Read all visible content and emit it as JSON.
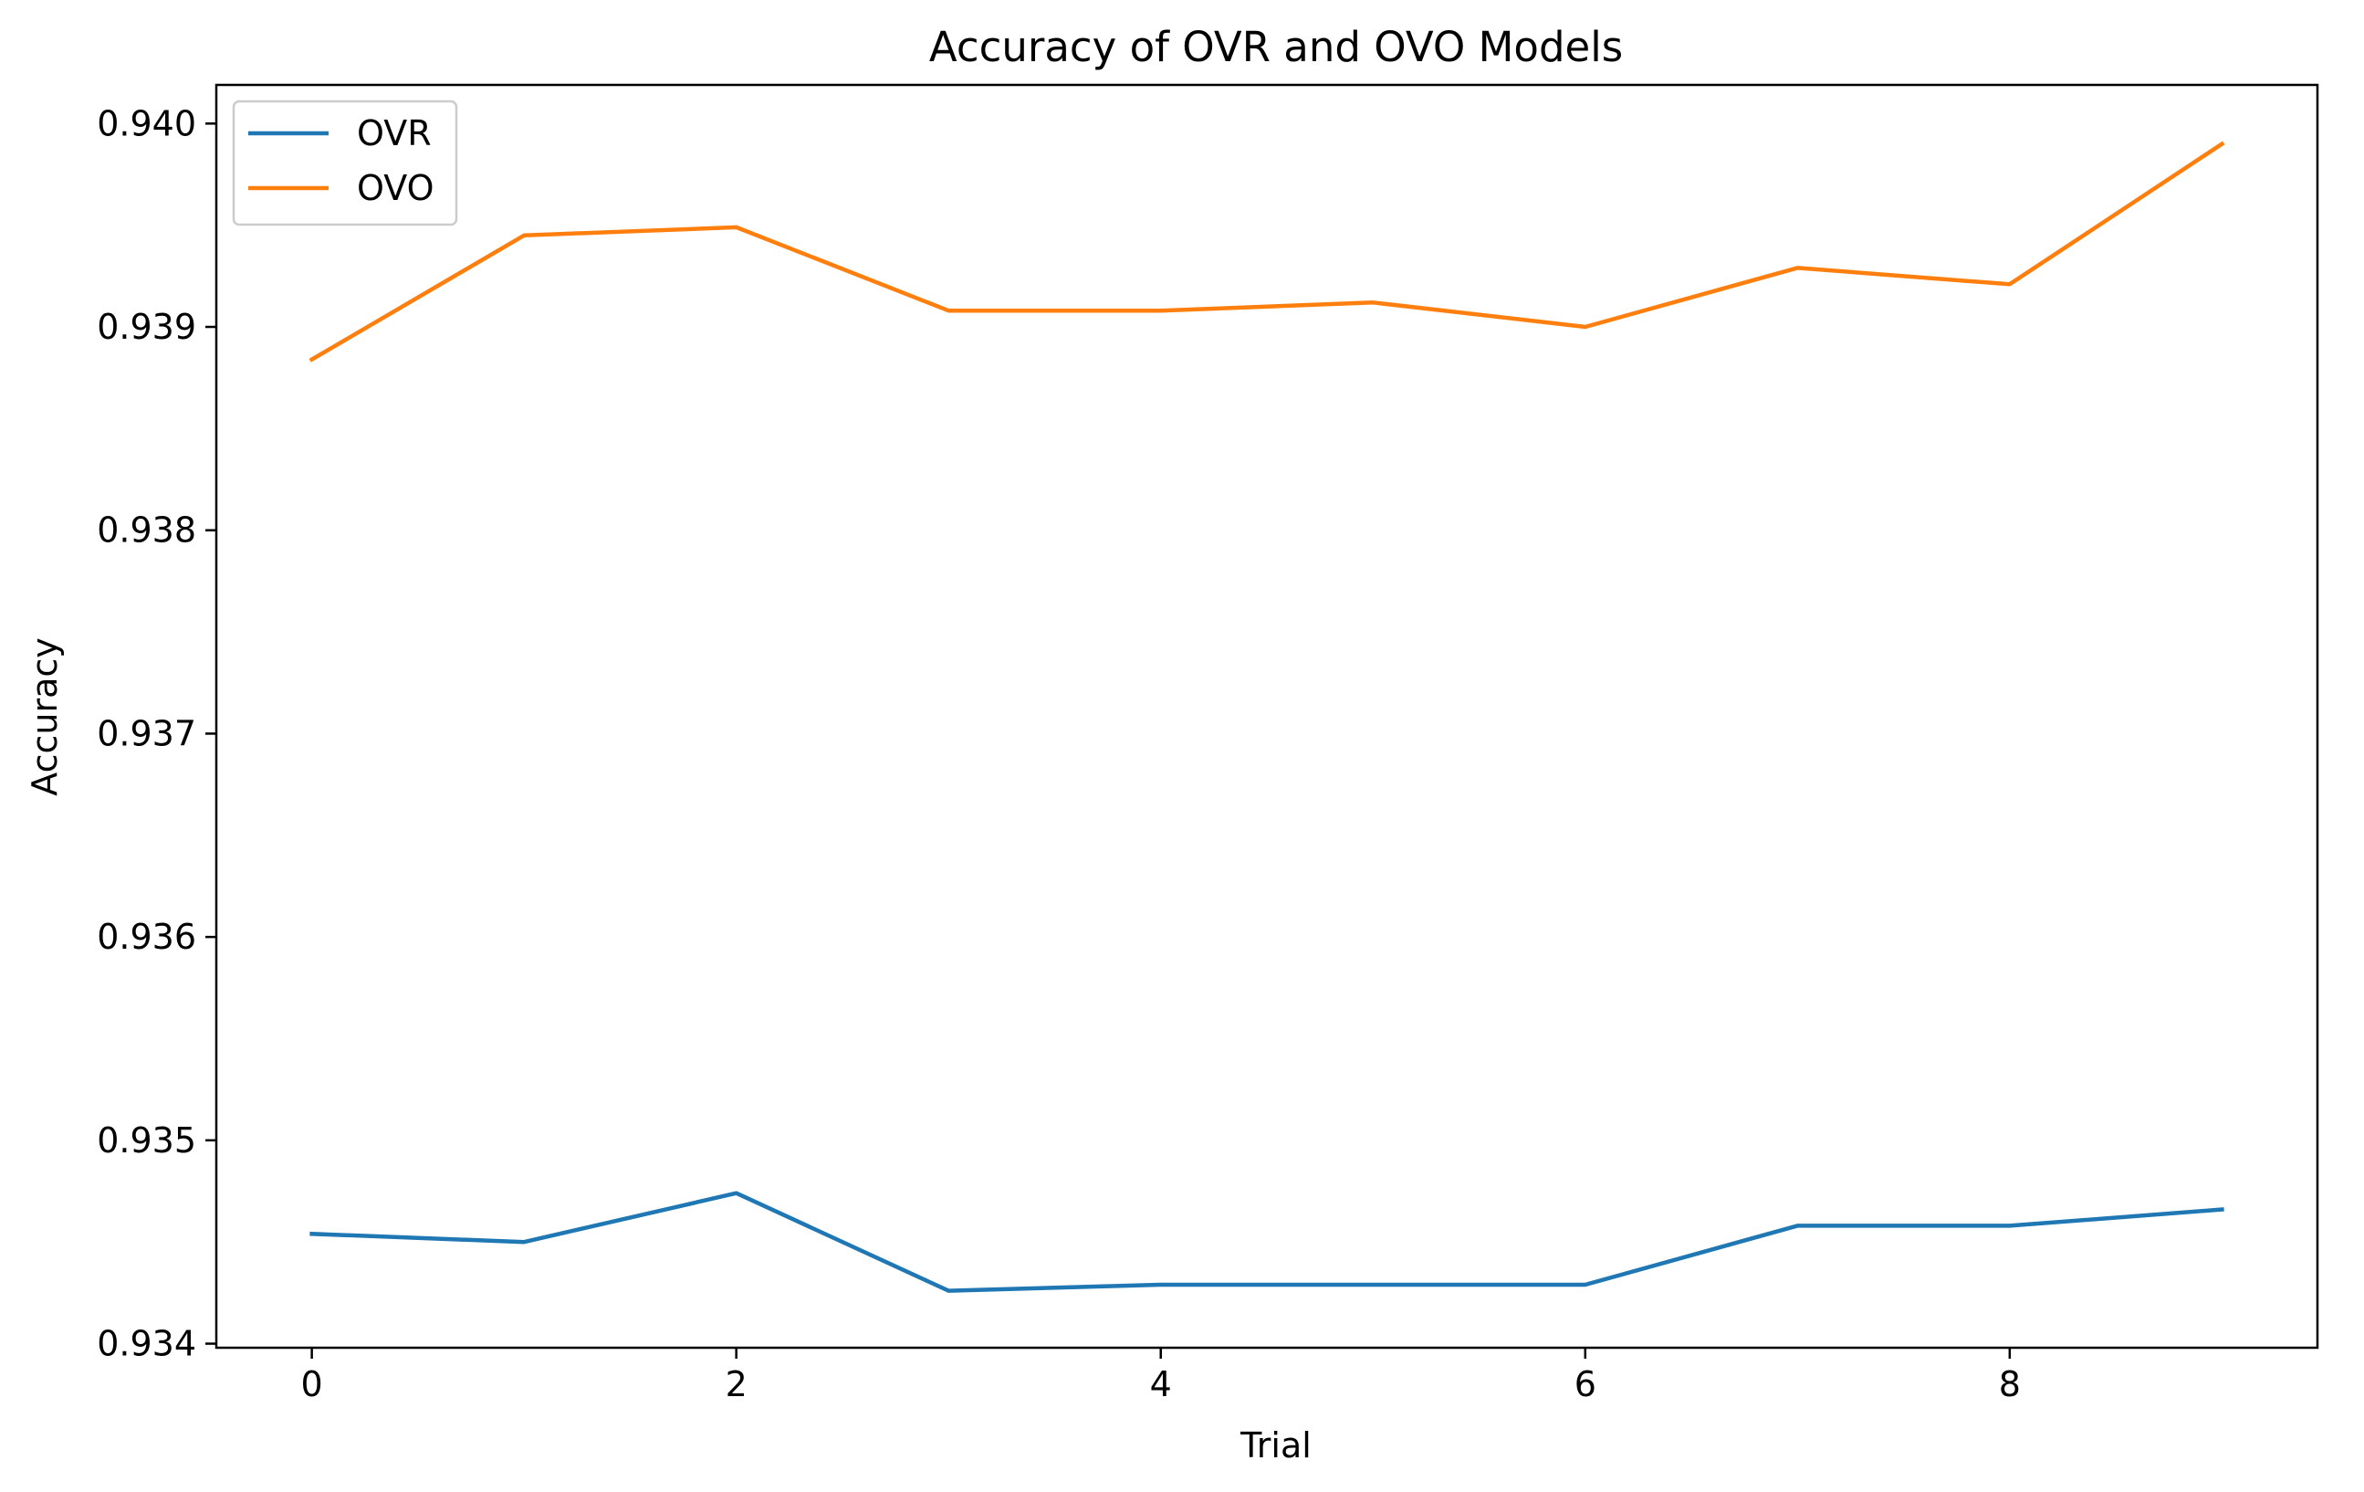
{
  "chart_data": {
    "type": "line",
    "title": "Accuracy of OVR and OVO Models",
    "xlabel": "Trial",
    "ylabel": "Accuracy",
    "x": [
      0,
      1,
      2,
      3,
      4,
      5,
      6,
      7,
      8,
      9
    ],
    "xlim": [
      -0.45,
      9.45
    ],
    "ylim": [
      0.93398,
      0.94019
    ],
    "xticks": [
      0,
      2,
      4,
      6,
      8
    ],
    "yticks": [
      0.934,
      0.935,
      0.936,
      0.937,
      0.938,
      0.939,
      0.94
    ],
    "xtick_labels": [
      "0",
      "2",
      "4",
      "6",
      "8"
    ],
    "ytick_labels": [
      "0.934",
      "0.935",
      "0.936",
      "0.937",
      "0.938",
      "0.939",
      "0.940"
    ],
    "grid": false,
    "legend_position": "upper-left",
    "series": [
      {
        "name": "OVR",
        "color": "#1f77b4",
        "values": [
          0.93454,
          0.9345,
          0.93474,
          0.93426,
          0.93429,
          0.93429,
          0.93429,
          0.93458,
          0.93458,
          0.93466
        ]
      },
      {
        "name": "OVO",
        "color": "#ff7f0e",
        "values": [
          0.93884,
          0.93945,
          0.93949,
          0.93908,
          0.93908,
          0.93912,
          0.939,
          0.93929,
          0.93921,
          0.9399
        ]
      }
    ]
  }
}
